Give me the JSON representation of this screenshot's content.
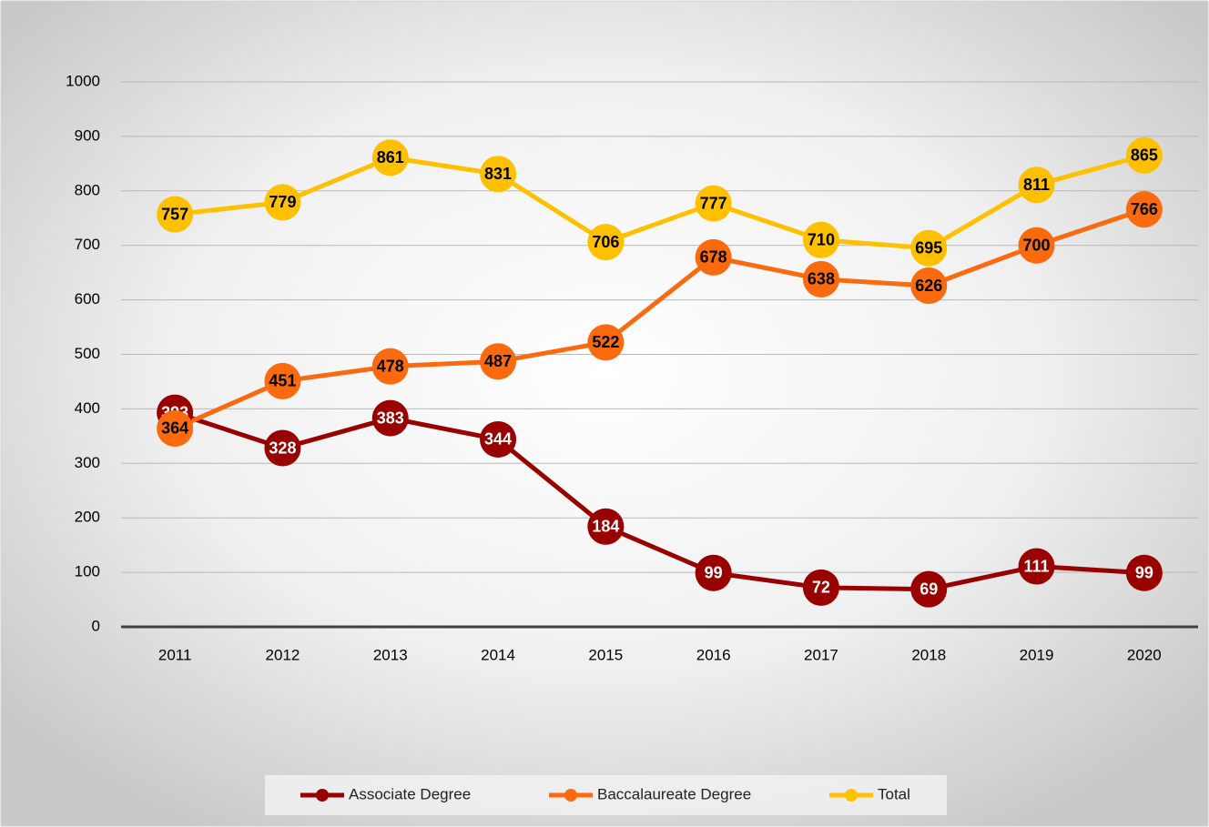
{
  "chart_data": {
    "type": "line",
    "categories": [
      "2011",
      "2012",
      "2013",
      "2014",
      "2015",
      "2016",
      "2017",
      "2018",
      "2019",
      "2020"
    ],
    "series": [
      {
        "name": "Associate Degree",
        "color": "#990000",
        "label_color": "#ffffff",
        "values": [
          393,
          328,
          383,
          344,
          184,
          99,
          72,
          69,
          111,
          99
        ]
      },
      {
        "name": "Baccalaureate Degree",
        "color": "#fb6a0f",
        "label_color": "#000000",
        "values": [
          364,
          451,
          478,
          487,
          522,
          678,
          638,
          626,
          700,
          766
        ]
      },
      {
        "name": "Total",
        "color": "#ffc000",
        "label_color": "#000000",
        "values": [
          757,
          779,
          861,
          831,
          706,
          777,
          710,
          695,
          811,
          865
        ]
      }
    ],
    "ylim": [
      0,
      1000
    ],
    "yticks": [
      0,
      100,
      200,
      300,
      400,
      500,
      600,
      700,
      800,
      900,
      1000
    ],
    "grid": true,
    "legend": "bottom"
  }
}
